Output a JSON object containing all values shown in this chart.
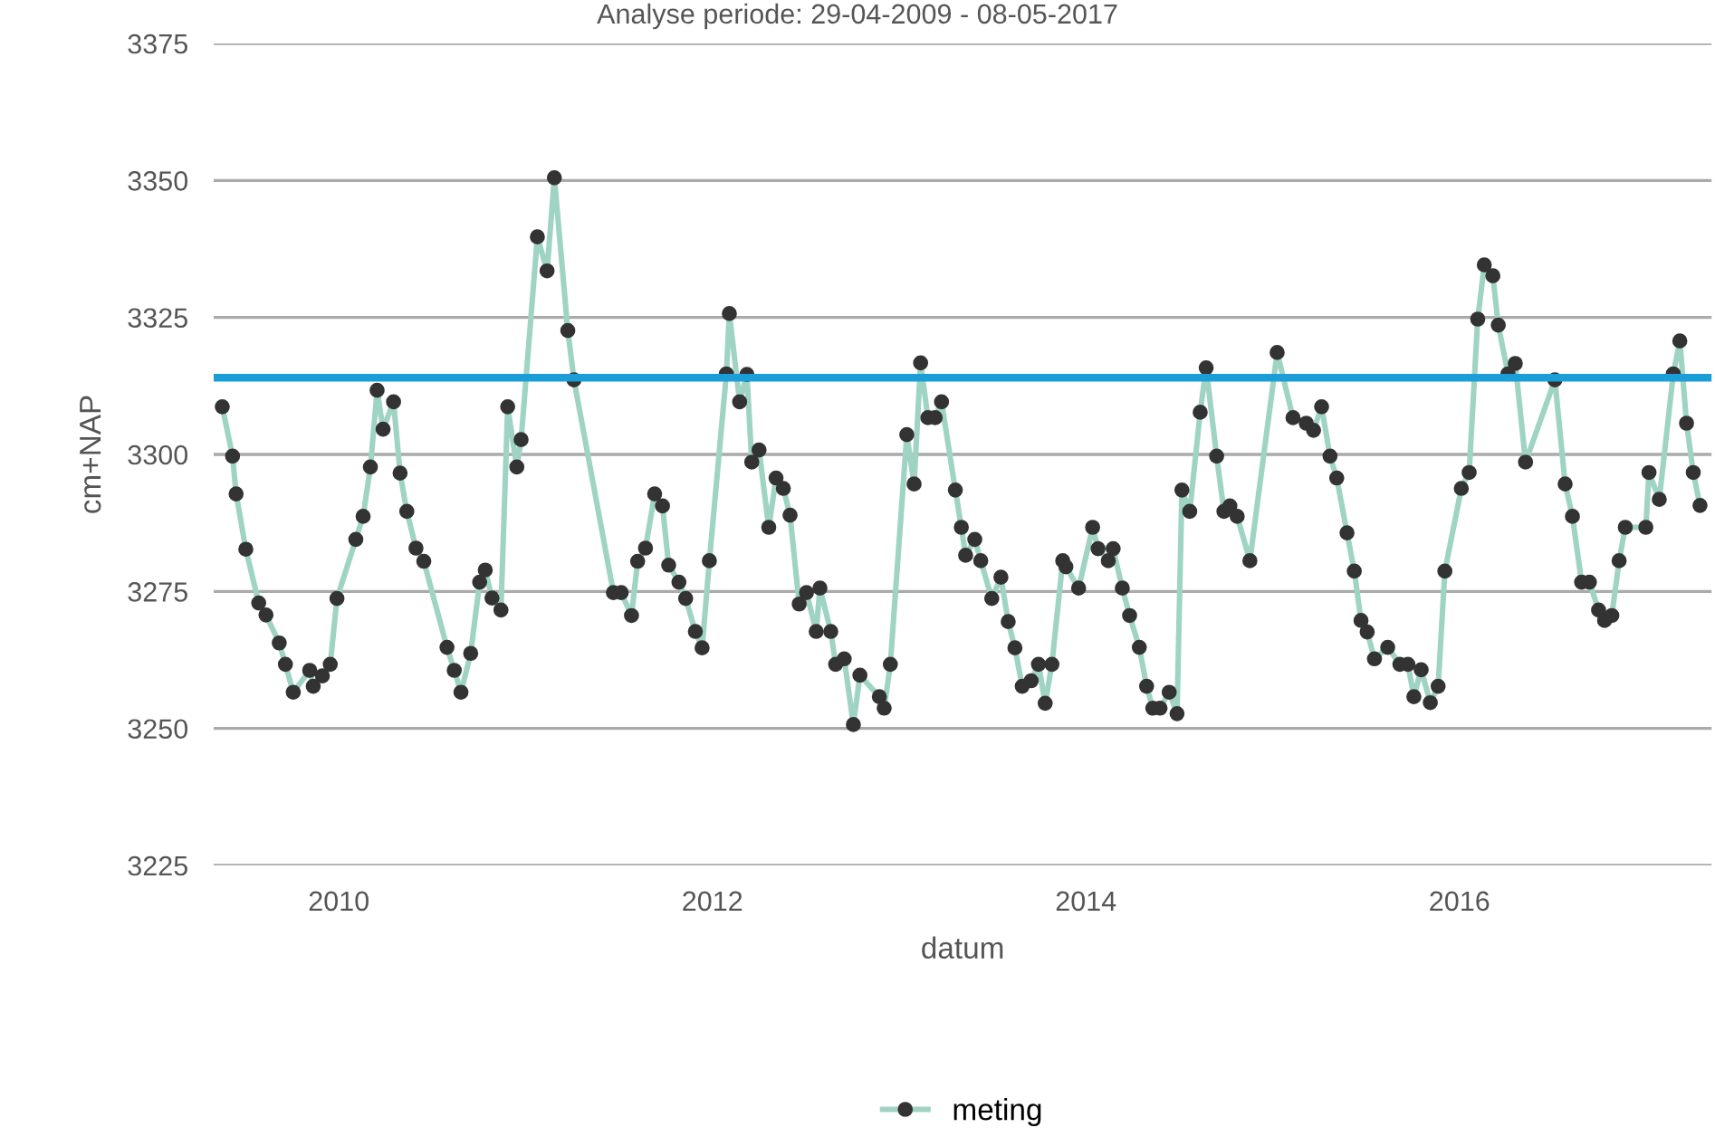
{
  "chart_data": {
    "type": "line",
    "title": "Analyse periode: 29-04-2009 - 08-05-2017",
    "xlabel": "datum",
    "ylabel": "cm+NAP",
    "xlim": [
      2009.33,
      2017.35
    ],
    "xticks": [
      2010,
      2012,
      2014,
      2016
    ],
    "ylim": [
      3225,
      3375
    ],
    "yticks": [
      3225,
      3250,
      3275,
      3300,
      3325,
      3350,
      3375
    ],
    "grid": "y",
    "legend": "bottom",
    "marker": "circle",
    "line_style": "solid",
    "ref_lines": [
      {
        "axis": "y",
        "value": 3314,
        "color": "#1a9ed9",
        "line_style": "solid"
      }
    ],
    "series": [
      {
        "name": "meting",
        "color": "#9fd4c4",
        "x": [
          2009.376,
          2009.431,
          2009.45,
          2009.502,
          2009.571,
          2009.61,
          2009.681,
          2009.714,
          2009.756,
          2009.844,
          2009.863,
          2009.912,
          2009.954,
          2009.99,
          2010.091,
          2010.13,
          2010.169,
          2010.205,
          2010.237,
          2010.293,
          2010.328,
          2010.364,
          2010.413,
          2010.455,
          2010.579,
          2010.618,
          2010.654,
          2010.706,
          2010.754,
          2010.784,
          2010.82,
          2010.868,
          2010.904,
          2010.953,
          2010.976,
          2011.063,
          2011.115,
          2011.154,
          2011.226,
          2011.259,
          2011.47,
          2011.512,
          2011.567,
          2011.6,
          2011.642,
          2011.691,
          2011.733,
          2011.766,
          2011.821,
          2011.857,
          2011.909,
          2011.945,
          2011.984,
          2012.075,
          2012.091,
          2012.146,
          2012.185,
          2012.211,
          2012.25,
          2012.302,
          2012.341,
          2012.38,
          2012.416,
          2012.465,
          2012.504,
          2012.556,
          2012.576,
          2012.634,
          2012.66,
          2012.706,
          2012.755,
          2012.79,
          2012.894,
          2012.92,
          2012.953,
          2013.041,
          2013.08,
          2013.115,
          2013.154,
          2013.193,
          2013.227,
          2013.301,
          2013.333,
          2013.356,
          2013.405,
          2013.437,
          2013.496,
          2013.545,
          2013.584,
          2013.62,
          2013.659,
          2013.707,
          2013.746,
          2013.782,
          2013.818,
          2013.876,
          2013.893,
          2013.961,
          2014.036,
          2014.065,
          2014.12,
          2014.146,
          2014.195,
          2014.234,
          2014.286,
          2014.325,
          2014.358,
          2014.397,
          2014.446,
          2014.488,
          2014.514,
          2014.556,
          2014.612,
          2014.644,
          2014.7,
          2014.739,
          2014.771,
          2014.81,
          2014.878,
          2015.024,
          2015.109,
          2015.18,
          2015.219,
          2015.262,
          2015.307,
          2015.343,
          2015.398,
          2015.437,
          2015.473,
          2015.506,
          2015.545,
          2015.616,
          2015.681,
          2015.724,
          2015.756,
          2015.795,
          2015.844,
          2015.886,
          2015.922,
          2016.01,
          2016.052,
          2016.098,
          2016.133,
          2016.179,
          2016.208,
          2016.26,
          2016.299,
          2016.354,
          2016.511,
          2016.566,
          2016.605,
          2016.654,
          2016.696,
          2016.745,
          2016.777,
          2016.816,
          2016.855,
          2016.888,
          2016.998,
          2017.015,
          2017.07,
          2017.145,
          2017.18,
          2017.216,
          2017.252,
          2017.288
        ],
        "values": [
          3308.7,
          3299.7,
          3292.8,
          3282.7,
          3272.9,
          3270.7,
          3265.6,
          3261.7,
          3256.6,
          3260.6,
          3257.7,
          3259.6,
          3261.7,
          3273.7,
          3284.5,
          3288.7,
          3297.7,
          3311.7,
          3304.6,
          3309.6,
          3296.6,
          3289.6,
          3282.9,
          3280.5,
          3264.8,
          3260.6,
          3256.6,
          3263.7,
          3276.7,
          3278.9,
          3273.8,
          3271.6,
          3308.7,
          3297.7,
          3302.7,
          3339.7,
          3333.5,
          3350.5,
          3322.6,
          3313.6,
          3274.8,
          3274.8,
          3270.6,
          3280.5,
          3282.9,
          3292.8,
          3290.6,
          3279.8,
          3276.7,
          3273.7,
          3267.7,
          3264.7,
          3280.6,
          3314.7,
          3325.7,
          3309.6,
          3314.6,
          3298.6,
          3300.8,
          3286.7,
          3295.7,
          3293.8,
          3288.9,
          3272.7,
          3274.8,
          3267.7,
          3275.6,
          3267.7,
          3261.7,
          3262.7,
          3250.7,
          3259.7,
          3255.8,
          3253.7,
          3261.7,
          3303.6,
          3294.6,
          3316.7,
          3306.7,
          3306.7,
          3309.6,
          3293.5,
          3286.7,
          3281.6,
          3284.5,
          3280.6,
          3273.7,
          3277.6,
          3269.5,
          3264.7,
          3257.7,
          3258.7,
          3261.7,
          3254.6,
          3261.7,
          3280.6,
          3279.5,
          3275.6,
          3286.7,
          3282.8,
          3280.6,
          3282.8,
          3275.6,
          3270.6,
          3264.8,
          3257.7,
          3253.7,
          3253.7,
          3256.6,
          3252.7,
          3293.5,
          3289.6,
          3307.7,
          3315.8,
          3299.7,
          3289.6,
          3290.6,
          3288.7,
          3280.6,
          3318.6,
          3306.7,
          3305.7,
          3304.4,
          3308.7,
          3299.7,
          3295.7,
          3285.7,
          3278.7,
          3269.7,
          3267.6,
          3262.7,
          3264.8,
          3261.7,
          3261.7,
          3255.8,
          3260.7,
          3254.7,
          3257.7,
          3278.7,
          3293.8,
          3296.7,
          3324.7,
          3334.6,
          3332.6,
          3323.6,
          3314.7,
          3316.6,
          3298.6,
          3313.6,
          3294.6,
          3288.7,
          3276.7,
          3276.7,
          3271.6,
          3269.7,
          3270.6,
          3280.6,
          3286.7,
          3286.7,
          3296.7,
          3291.8,
          3314.7,
          3320.7,
          3305.7,
          3296.7,
          3290.7
        ]
      }
    ]
  }
}
